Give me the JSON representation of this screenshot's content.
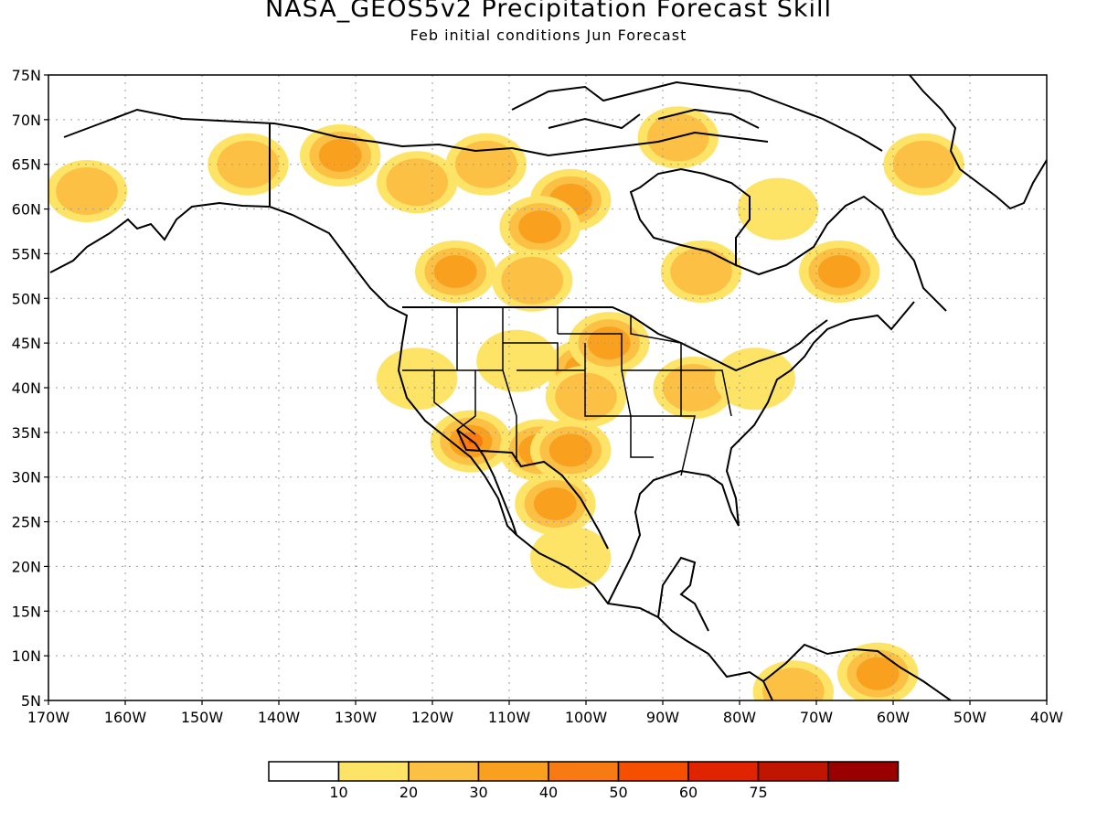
{
  "title": "NASA_GEOS5v2 Precipitation Forecast Skill",
  "subtitle": "Feb initial conditions  Jun Forecast",
  "map": {
    "projection": "cylindrical equidistant",
    "lon_range": [
      -170,
      -40
    ],
    "lat_range": [
      5,
      75
    ],
    "grid": "dotted",
    "lat_labels": [
      "5N",
      "10N",
      "15N",
      "20N",
      "25N",
      "30N",
      "35N",
      "40N",
      "45N",
      "50N",
      "55N",
      "60N",
      "65N",
      "70N",
      "75N"
    ],
    "lon_labels": [
      "170W",
      "160W",
      "150W",
      "140W",
      "130W",
      "120W",
      "110W",
      "100W",
      "90W",
      "80W",
      "70W",
      "60W",
      "50W",
      "40W"
    ]
  },
  "legend": {
    "colors": [
      "#ffffff",
      "#fde467",
      "#fbc044",
      "#f9a11e",
      "#f77a12",
      "#f55000",
      "#e02400",
      "#c01500",
      "#9a0000"
    ],
    "labels": [
      "10",
      "20",
      "30",
      "40",
      "50",
      "60",
      "75"
    ]
  },
  "skill_regions": [
    {
      "lon": -132,
      "lat": 66,
      "level": 3
    },
    {
      "lon": -122,
      "lat": 63,
      "level": 2
    },
    {
      "lon": -144,
      "lat": 65,
      "level": 2
    },
    {
      "lon": -165,
      "lat": 62,
      "level": 2
    },
    {
      "lon": -113,
      "lat": 65,
      "level": 2
    },
    {
      "lon": -102,
      "lat": 61,
      "level": 3
    },
    {
      "lon": -106,
      "lat": 58,
      "level": 3
    },
    {
      "lon": -117,
      "lat": 53,
      "level": 3
    },
    {
      "lon": -107,
      "lat": 52,
      "level": 2
    },
    {
      "lon": -85,
      "lat": 53,
      "level": 2
    },
    {
      "lon": -67,
      "lat": 53,
      "level": 3
    },
    {
      "lon": -88,
      "lat": 68,
      "level": 2
    },
    {
      "lon": -75,
      "lat": 60,
      "level": 1
    },
    {
      "lon": -115,
      "lat": 34,
      "level": 5
    },
    {
      "lon": -106,
      "lat": 33,
      "level": 3
    },
    {
      "lon": -102,
      "lat": 33,
      "level": 3
    },
    {
      "lon": -104,
      "lat": 27,
      "level": 3
    },
    {
      "lon": -100,
      "lat": 42,
      "level": 3
    },
    {
      "lon": -97,
      "lat": 45,
      "level": 3
    },
    {
      "lon": -100,
      "lat": 39,
      "level": 2
    },
    {
      "lon": -86,
      "lat": 40,
      "level": 2
    },
    {
      "lon": -78,
      "lat": 41,
      "level": 1
    },
    {
      "lon": -109,
      "lat": 43,
      "level": 1
    },
    {
      "lon": -122,
      "lat": 41,
      "level": 1
    },
    {
      "lon": -73,
      "lat": 6,
      "level": 2
    },
    {
      "lon": -62,
      "lat": 8,
      "level": 3
    },
    {
      "lon": -56,
      "lat": 65,
      "level": 2
    },
    {
      "lon": -102,
      "lat": 21,
      "level": 1
    }
  ]
}
